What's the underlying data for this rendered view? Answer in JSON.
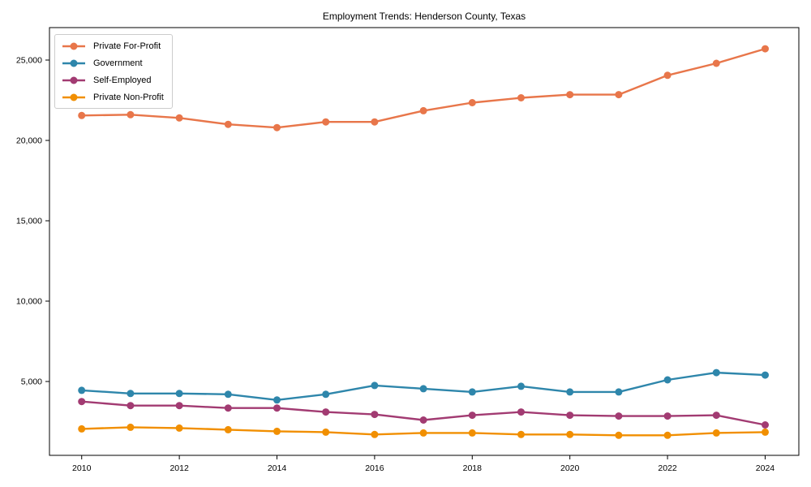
{
  "chart_data": {
    "type": "line",
    "title": "Employment Trends: Henderson County, Texas",
    "xlabel": "",
    "ylabel": "",
    "grid": false,
    "legend_position": "upper-left",
    "x": [
      2010,
      2011,
      2012,
      2013,
      2014,
      2015,
      2016,
      2017,
      2018,
      2019,
      2020,
      2021,
      2022,
      2023,
      2024
    ],
    "series": [
      {
        "name": "Private For-Profit",
        "color": "#e8764a",
        "values": [
          21550,
          21600,
          21400,
          21000,
          20800,
          21150,
          21150,
          21850,
          22350,
          22650,
          22850,
          22850,
          24050,
          24800,
          25700
        ]
      },
      {
        "name": "Government",
        "color": "#2e86ab",
        "values": [
          4450,
          4250,
          4250,
          4200,
          3850,
          4200,
          4750,
          4550,
          4350,
          4700,
          4350,
          4350,
          5100,
          5550,
          5400
        ]
      },
      {
        "name": "Self-Employed",
        "color": "#a23b72",
        "values": [
          3750,
          3500,
          3500,
          3350,
          3350,
          3100,
          2950,
          2600,
          2900,
          3100,
          2900,
          2850,
          2850,
          2900,
          2300
        ]
      },
      {
        "name": "Private Non-Profit",
        "color": "#f18f01",
        "values": [
          2050,
          2150,
          2100,
          2000,
          1900,
          1850,
          1700,
          1800,
          1800,
          1700,
          1700,
          1650,
          1650,
          1800,
          1850
        ]
      }
    ],
    "x_ticks": [
      2010,
      2012,
      2014,
      2016,
      2018,
      2020,
      2022,
      2024
    ],
    "x_tick_labels": [
      "2010",
      "2012",
      "2014",
      "2016",
      "2018",
      "2020",
      "2022",
      "2024"
    ],
    "y_ticks": [
      5000,
      10000,
      15000,
      20000,
      25000
    ],
    "y_tick_labels": [
      "5,000",
      "10,000",
      "15,000",
      "20,000",
      "25,000"
    ],
    "xlim": [
      2009.34,
      2024.69
    ],
    "ylim": [
      404,
      27020
    ],
    "axis_color": "#000000"
  }
}
